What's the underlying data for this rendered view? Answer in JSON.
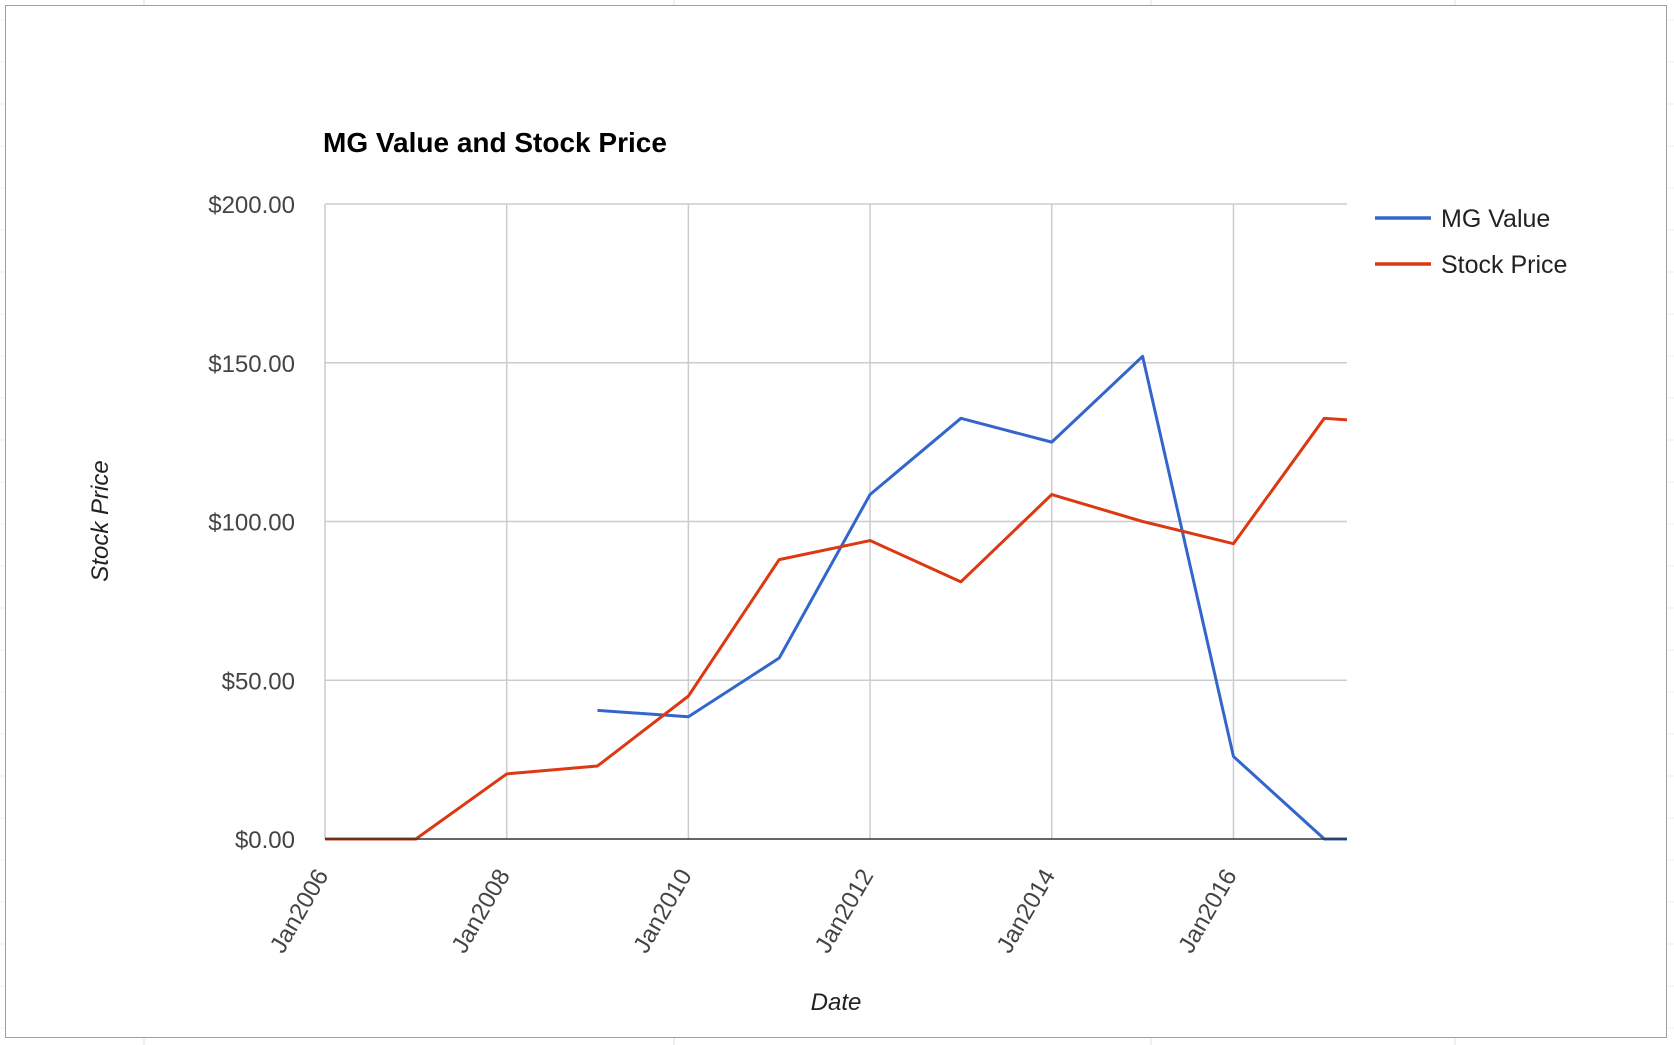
{
  "chart_data": {
    "type": "line",
    "title": "MG Value and Stock Price",
    "xlabel": "Date",
    "ylabel": "Stock Price",
    "x": [
      2006,
      2007,
      2008,
      2009,
      2010,
      2011,
      2012,
      2013,
      2014,
      2015,
      2016,
      2017,
      2017.25
    ],
    "x_tick_values": [
      2006,
      2008,
      2010,
      2012,
      2014,
      2016
    ],
    "x_tick_labels": [
      "Jan2006",
      "Jan2008",
      "Jan2010",
      "Jan2012",
      "Jan2014",
      "Jan2016"
    ],
    "xlim": [
      2006,
      2017.25
    ],
    "ylim": [
      0,
      200
    ],
    "y_ticks": [
      0,
      50,
      100,
      150,
      200
    ],
    "y_tick_labels": [
      "$0.00",
      "$50.00",
      "$100.00",
      "$150.00",
      "$200.00"
    ],
    "grid": true,
    "legend_position": "right",
    "series": [
      {
        "name": "MG Value",
        "color": "#3366cc",
        "values": [
          null,
          null,
          null,
          40.5,
          38.5,
          57,
          108.5,
          132.5,
          125,
          152,
          26,
          0,
          0
        ]
      },
      {
        "name": "Stock Price",
        "color": "#dc3912",
        "values": [
          0,
          0,
          20.5,
          23,
          45,
          88,
          94,
          81,
          108.5,
          100,
          93,
          132.5,
          132
        ]
      }
    ]
  }
}
